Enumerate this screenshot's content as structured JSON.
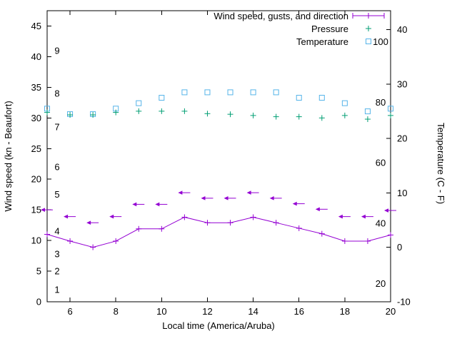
{
  "chart_data": {
    "type": "line",
    "title": "",
    "xlabel": "Local time (America/Aruba)",
    "ylabel_left": "Wind speed (kn - Beaufort)",
    "ylabel_right": "Temperature (C - F)",
    "xlim": [
      5,
      20
    ],
    "x_ticks": [
      6,
      8,
      10,
      12,
      14,
      16,
      18,
      20
    ],
    "ylim_left": [
      0,
      47.5
    ],
    "y_ticks_left": [
      0,
      5,
      10,
      15,
      20,
      25,
      30,
      35,
      40,
      45
    ],
    "ylim_right": [
      -10,
      43.5
    ],
    "y_ticks_right": [
      -10,
      0,
      10,
      20,
      30,
      40
    ],
    "beaufort_scale_labels": [
      {
        "label": "1",
        "kn": 2
      },
      {
        "label": "2",
        "kn": 5
      },
      {
        "label": "3",
        "kn": 7.8
      },
      {
        "label": "4",
        "kn": 11.5
      },
      {
        "label": "5",
        "kn": 17.5
      },
      {
        "label": "6",
        "kn": 22
      },
      {
        "label": "7",
        "kn": 28.5
      },
      {
        "label": "8",
        "kn": 34
      },
      {
        "label": "9",
        "kn": 41
      }
    ],
    "fahrenheit_scale_labels": [
      20,
      40,
      60,
      80,
      100
    ],
    "grid": false,
    "legend_position": "top-right-inside",
    "x": [
      5,
      6,
      7,
      8,
      9,
      10,
      11,
      12,
      13,
      14,
      15,
      16,
      17,
      18,
      19,
      20
    ],
    "series": [
      {
        "name": "Wind speed, gusts, and direction",
        "style": "errorlines",
        "marker": "plus",
        "color": "#9400D3",
        "axis": "left",
        "wind_kn": [
          11.0,
          9.9,
          8.9,
          9.9,
          11.9,
          11.9,
          13.8,
          12.9,
          12.9,
          13.8,
          12.9,
          12.0,
          11.1,
          9.9,
          9.9,
          10.9
        ],
        "gust_kn": [
          11.0,
          9.9,
          8.9,
          9.9,
          11.9,
          11.9,
          13.8,
          12.9,
          12.9,
          13.8,
          12.9,
          12.0,
          11.1,
          9.9,
          9.9,
          10.9
        ],
        "direction_arrows_kn": [
          15.0,
          13.9,
          12.9,
          13.9,
          15.9,
          15.9,
          17.8,
          16.9,
          16.9,
          17.8,
          16.9,
          16.0,
          15.1,
          13.9,
          13.9,
          14.9
        ],
        "arrow_pointing": "left"
      },
      {
        "name": "Pressure",
        "style": "points",
        "marker": "plus",
        "color": "#009E73",
        "axis": "left",
        "values": [
          30.9,
          30.5,
          30.5,
          30.9,
          31.1,
          31.1,
          31.1,
          30.7,
          30.6,
          30.4,
          30.2,
          30.2,
          30.0,
          30.4,
          29.8,
          30.4
        ]
      },
      {
        "name": "Temperature",
        "style": "points",
        "marker": "open-square",
        "color": "#56B4E9",
        "axis": "right",
        "values_c": [
          25.5,
          24.5,
          24.5,
          25.5,
          26.5,
          27.5,
          28.5,
          28.5,
          28.5,
          28.5,
          28.5,
          27.5,
          27.5,
          26.5,
          25.0,
          25.5
        ]
      }
    ]
  }
}
